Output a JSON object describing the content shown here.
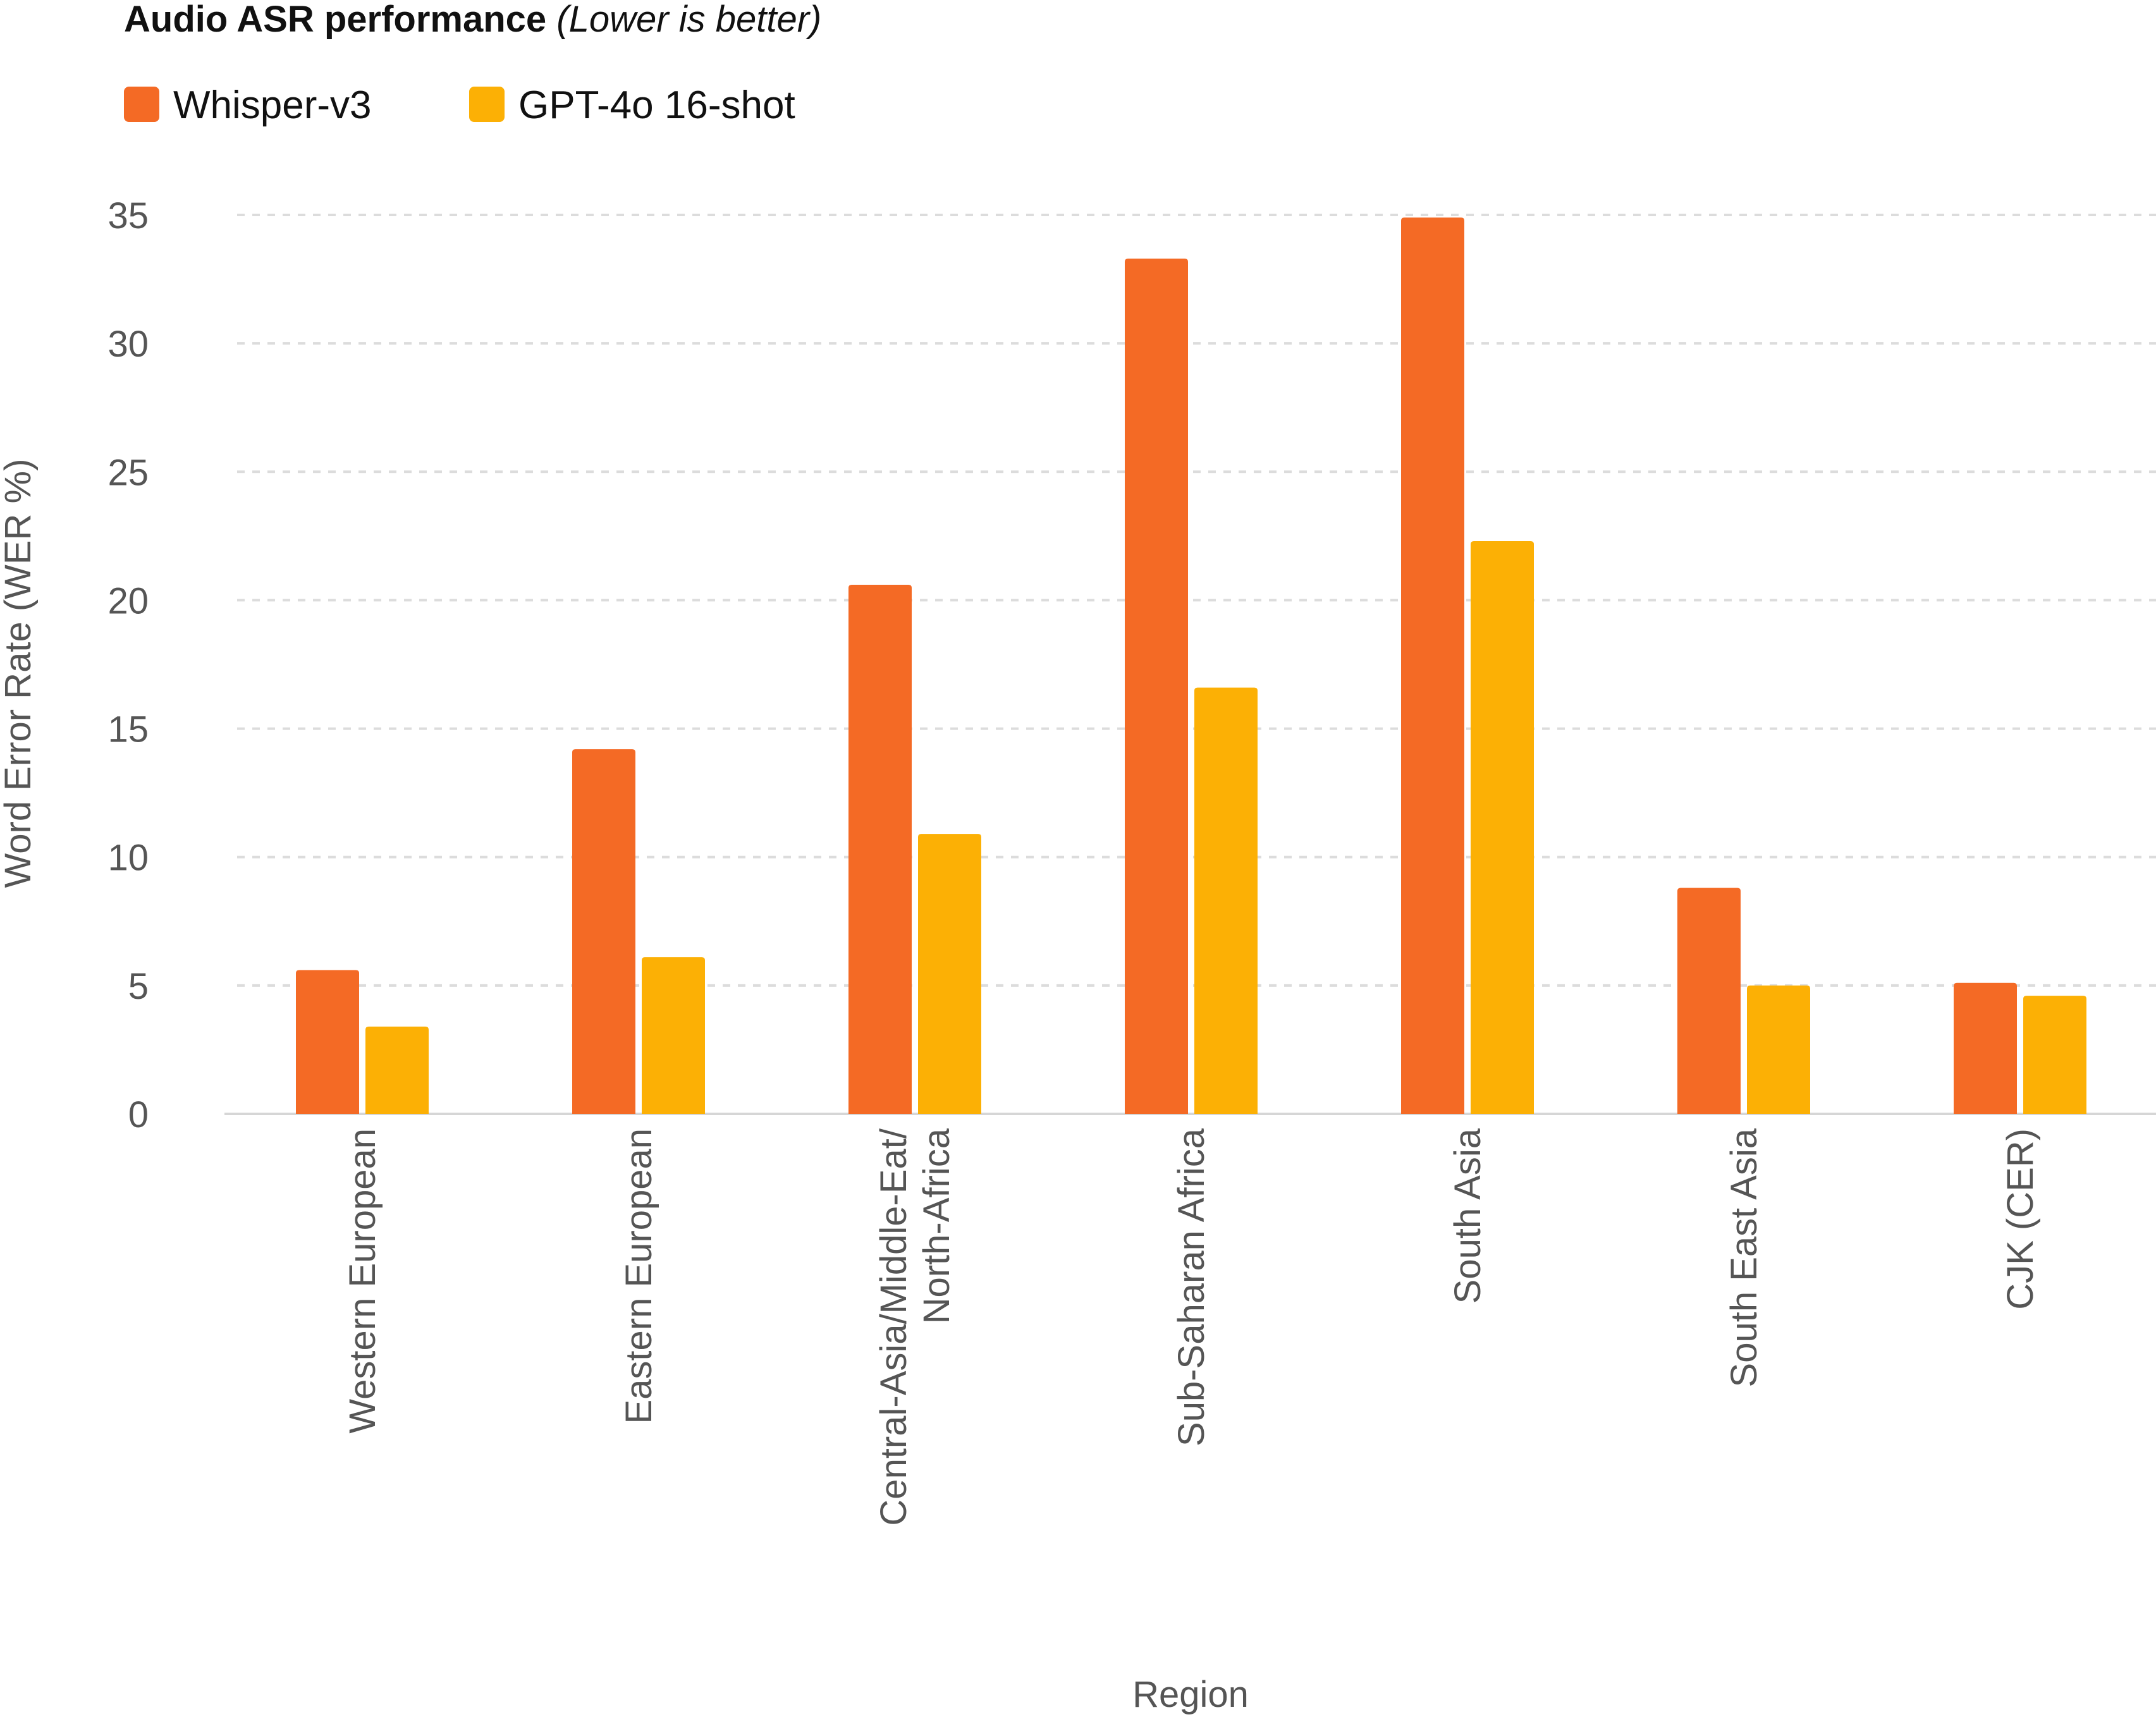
{
  "chart_data": {
    "type": "bar",
    "title": "Audio ASR performance",
    "title_note": "(Lower is better)",
    "xlabel": "Region",
    "ylabel": "Word Error Rate (WER %)",
    "ylim": [
      0,
      35
    ],
    "yticks": [
      0,
      5,
      10,
      15,
      20,
      25,
      30,
      35
    ],
    "grid": true,
    "legend_position": "top-left",
    "categories": [
      [
        "Western European"
      ],
      [
        "Eastern European"
      ],
      [
        "Central-Asia/Middle-Eat/",
        "North-Africa"
      ],
      [
        "Sub-Saharan Africa"
      ],
      [
        "South Asia"
      ],
      [
        "South East Asia"
      ],
      [
        "CJK (CER)"
      ]
    ],
    "series": [
      {
        "name": "Whisper-v3",
        "color": "#F46A25",
        "values": [
          5.6,
          14.2,
          20.6,
          33.3,
          34.9,
          8.8,
          5.1
        ]
      },
      {
        "name": "GPT-4o 16-shot",
        "color": "#FCB005",
        "values": [
          3.4,
          6.1,
          10.9,
          16.6,
          22.3,
          5.0,
          4.6
        ]
      }
    ]
  }
}
